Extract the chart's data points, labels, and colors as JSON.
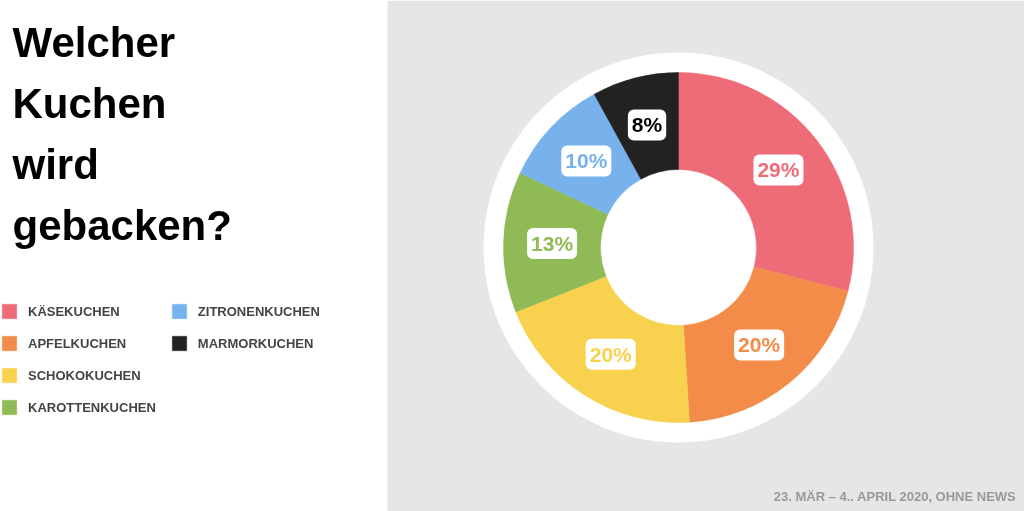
{
  "chart_data": {
    "type": "donut",
    "title": "Welcher Kuchen wird gebacken?",
    "categories": [
      "KÄSEKUCHEN",
      "APFELKUCHEN",
      "SCHOKOKUCHEN",
      "KAROTTENKUCHEN",
      "ZITRONENKUCHEN",
      "MARMORKUCHEN"
    ],
    "values": [
      29,
      20,
      20,
      13,
      10,
      8
    ],
    "colors": [
      "#ee6b78",
      "#f28c48",
      "#f8d14f",
      "#8fba55",
      "#77b2ec",
      "#222222"
    ],
    "value_labels": [
      "29%",
      "20%",
      "20%",
      "13%",
      "10%",
      "8%"
    ],
    "legend": "left",
    "annotations": [
      "23. MÄR – 4.. APRIL 2020, OHNE NEWS"
    ]
  }
}
